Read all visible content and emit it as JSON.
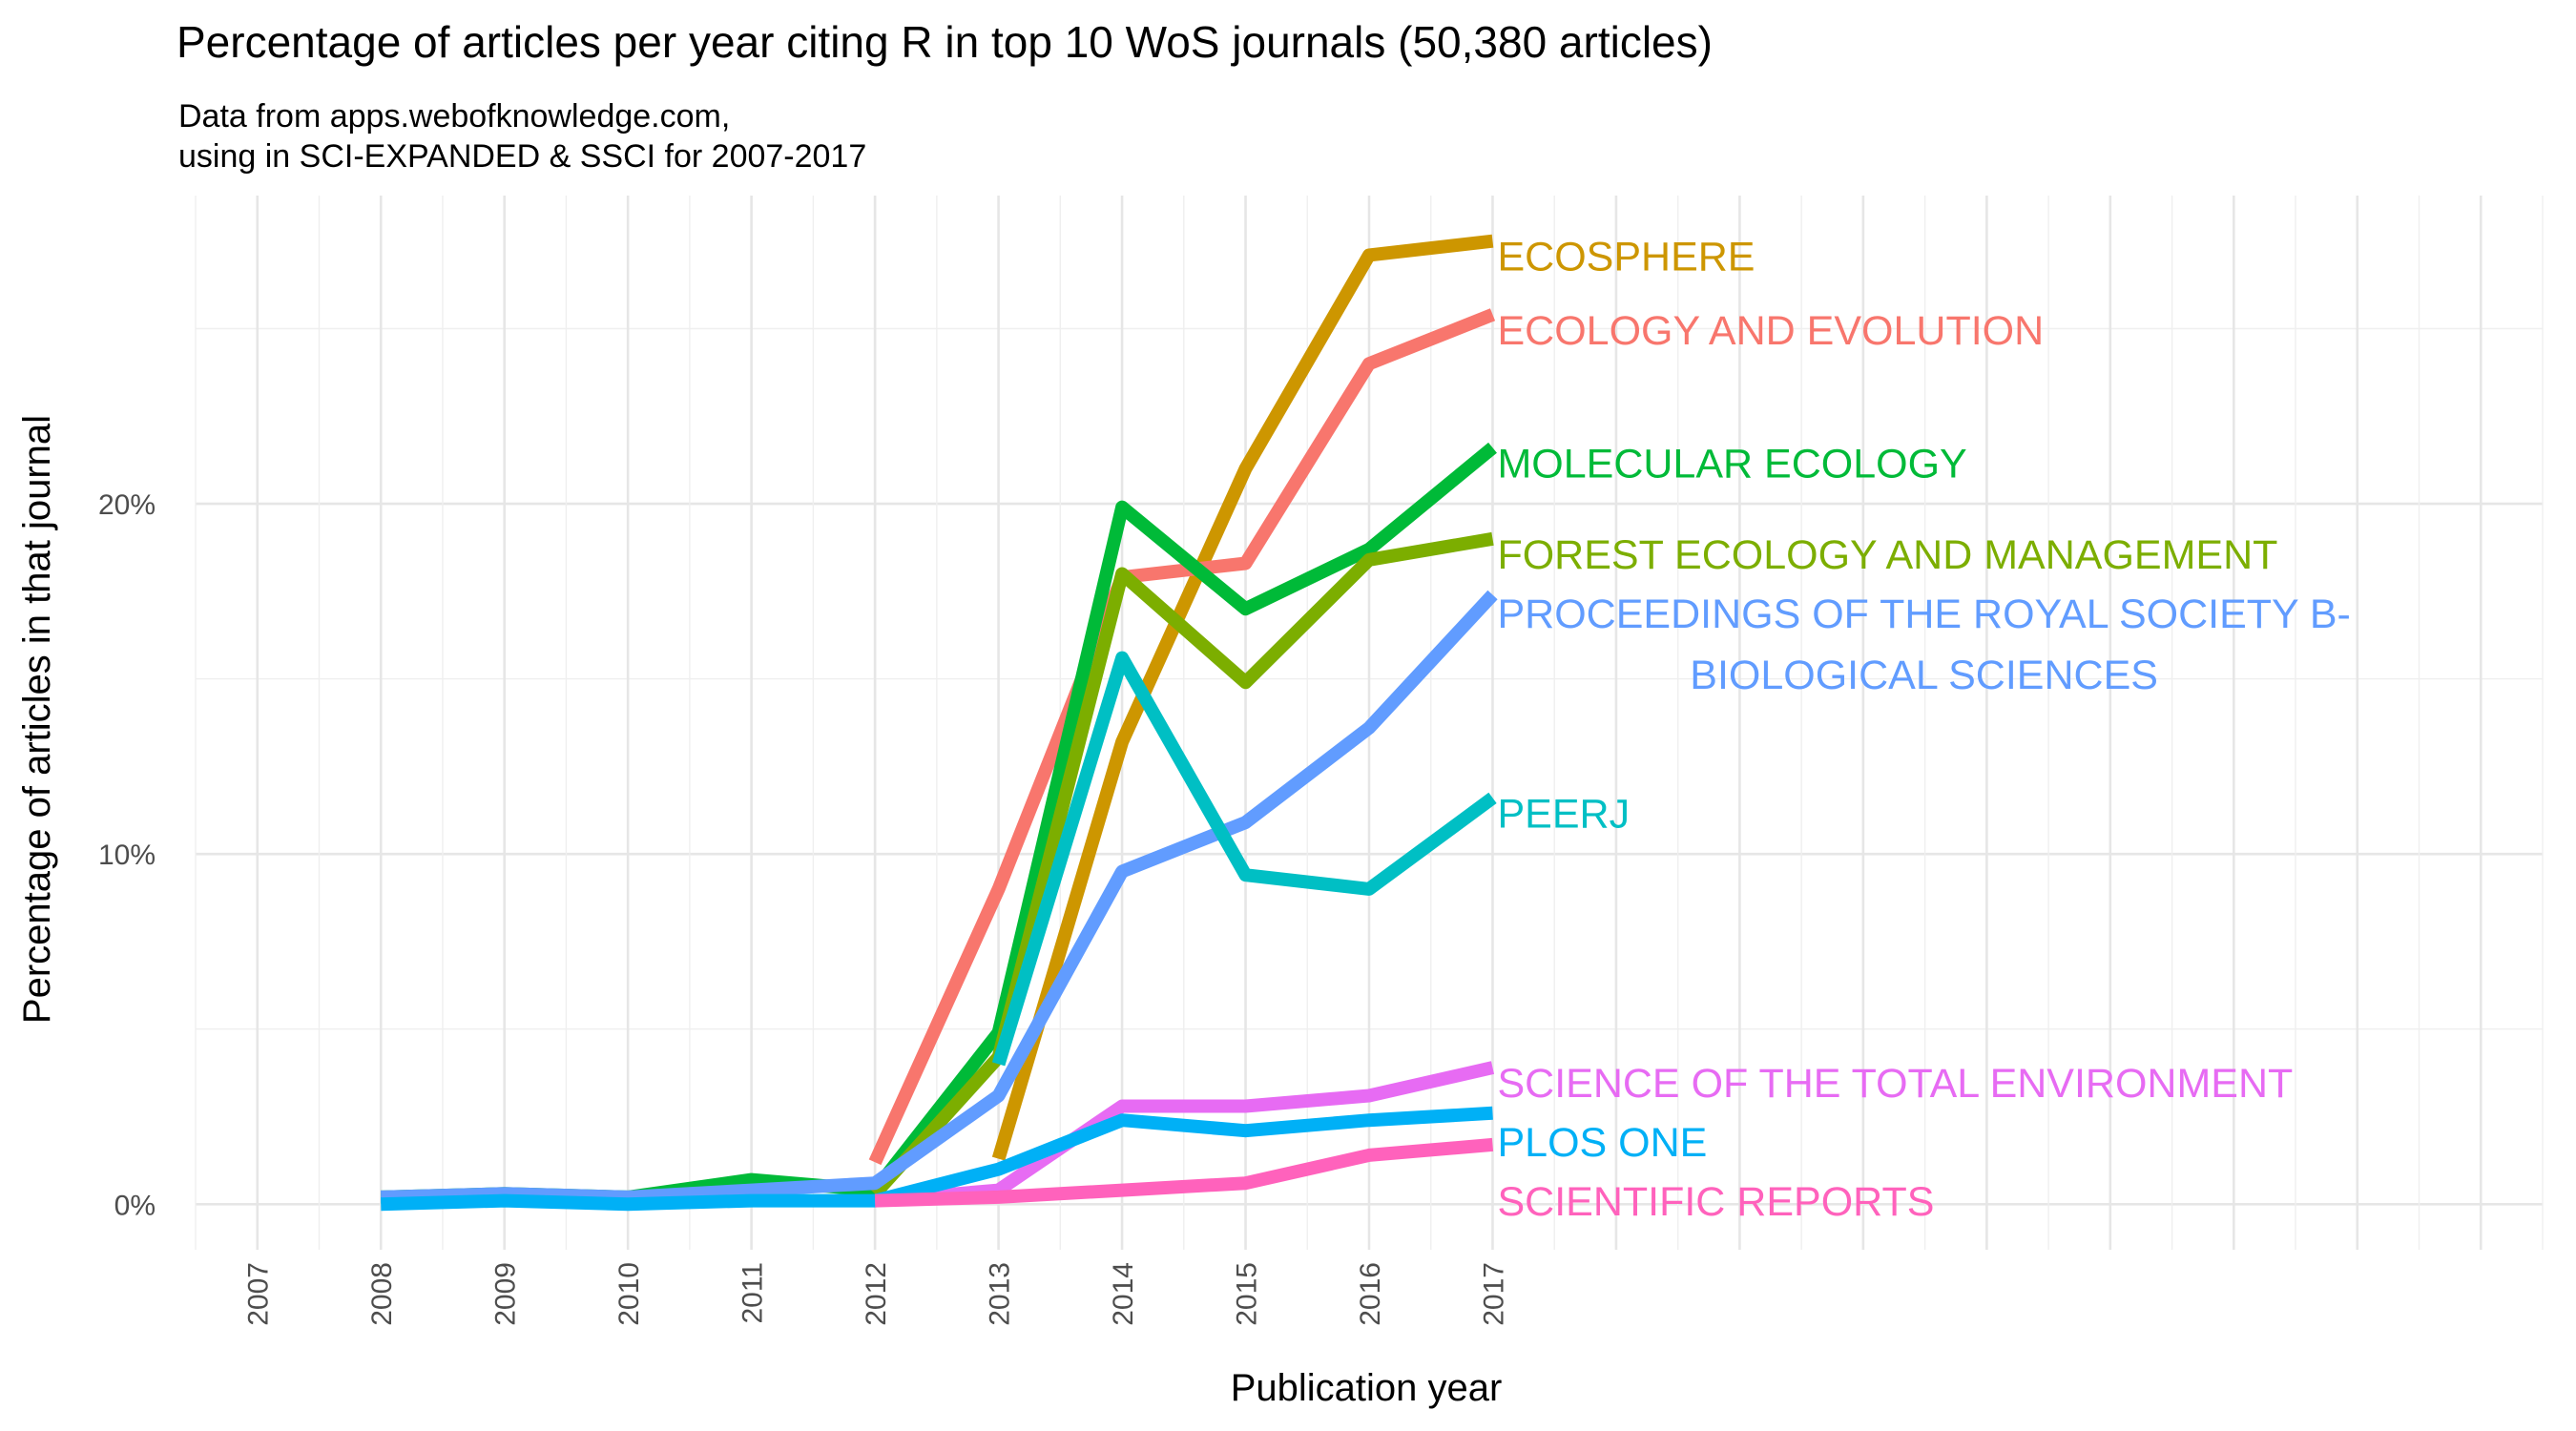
{
  "chart_data": {
    "type": "line",
    "title": "Percentage of articles per year citing R in top 10 WoS journals (50,380 articles)",
    "subtitle": [
      "Data from apps.webofknowledge.com,",
      "using in SCI-EXPANDED & SSCI for 2007-2017"
    ],
    "xlabel": "Publication year",
    "ylabel": "Percentage of articles in that journal",
    "x_ticks": [
      "2007",
      "2008",
      "2009",
      "2010",
      "2011",
      "2012",
      "2013",
      "2014",
      "2015",
      "2016",
      "2017"
    ],
    "y_ticks": [
      0,
      10,
      20
    ],
    "y_tick_labels": [
      "0%",
      "10%",
      "20%"
    ],
    "xlim": [
      2006.5,
      2025.5
    ],
    "ylim": [
      -1.3,
      28.8
    ],
    "grid": true,
    "legend": "direct labels at line ends",
    "series": [
      {
        "name": "ECOSPHERE",
        "label_lines": [
          "ECOSPHERE"
        ],
        "color": "#CD9600",
        "x": [
          2013,
          2014,
          2015,
          2016,
          2017
        ],
        "y": [
          1.3,
          13.2,
          21.0,
          27.1,
          27.5
        ]
      },
      {
        "name": "ECOLOGY AND EVOLUTION",
        "label_lines": [
          "ECOLOGY AND EVOLUTION"
        ],
        "color": "#F8766D",
        "x": [
          2012,
          2013,
          2014,
          2015,
          2016,
          2017
        ],
        "y": [
          1.2,
          9.0,
          17.9,
          18.3,
          24.0,
          25.4
        ]
      },
      {
        "name": "MOLECULAR ECOLOGY",
        "label_lines": [
          "MOLECULAR ECOLOGY"
        ],
        "color": "#00BA38",
        "x": [
          2008,
          2009,
          2010,
          2011,
          2012,
          2013,
          2014,
          2015,
          2016,
          2017
        ],
        "y": [
          0.2,
          0.3,
          0.2,
          0.7,
          0.4,
          4.9,
          19.9,
          17.0,
          18.7,
          21.6
        ]
      },
      {
        "name": "FOREST ECOLOGY AND MANAGEMENT",
        "label_lines": [
          "FOREST ECOLOGY AND MANAGEMENT"
        ],
        "color": "#7CAE00",
        "x": [
          2012,
          2013,
          2014,
          2015,
          2016,
          2017
        ],
        "y": [
          0.3,
          4.2,
          18.0,
          14.9,
          18.4,
          19.0
        ]
      },
      {
        "name": "PROCEEDINGS OF THE ROYAL SOCIETY B-BIOLOGICAL SCIENCES",
        "label_lines": [
          "PROCEEDINGS OF THE ROYAL SOCIETY B-",
          "BIOLOGICAL SCIENCES"
        ],
        "color": "#619CFF",
        "x": [
          2008,
          2009,
          2010,
          2011,
          2012,
          2013,
          2014,
          2015,
          2016,
          2017
        ],
        "y": [
          0.2,
          0.3,
          0.2,
          0.4,
          0.6,
          3.1,
          9.5,
          10.9,
          13.6,
          17.4
        ]
      },
      {
        "name": "PEERJ",
        "label_lines": [
          "PEERJ"
        ],
        "color": "#00BFC4",
        "x": [
          2013,
          2014,
          2015,
          2016,
          2017
        ],
        "y": [
          4.0,
          15.6,
          9.4,
          9.0,
          11.6
        ]
      },
      {
        "name": "SCIENCE OF THE TOTAL ENVIRONMENT",
        "label_lines": [
          "SCIENCE OF THE TOTAL ENVIRONMENT"
        ],
        "color": "#E76BF3",
        "x": [
          2012,
          2013,
          2014,
          2015,
          2016,
          2017
        ],
        "y": [
          0.1,
          0.4,
          2.8,
          2.8,
          3.1,
          3.9
        ]
      },
      {
        "name": "PLOS ONE",
        "label_lines": [
          "PLOS ONE"
        ],
        "color": "#00B0F6",
        "x": [
          2008,
          2009,
          2010,
          2011,
          2012,
          2013,
          2014,
          2015,
          2016,
          2017
        ],
        "y": [
          0.0,
          0.1,
          0.0,
          0.1,
          0.1,
          1.0,
          2.4,
          2.1,
          2.4,
          2.6
        ]
      },
      {
        "name": "SCIENTIFIC REPORTS",
        "label_lines": [
          "SCIENTIFIC REPORTS"
        ],
        "color": "#FF62BC",
        "x": [
          2012,
          2013,
          2014,
          2015,
          2016,
          2017
        ],
        "y": [
          0.1,
          0.2,
          0.4,
          0.6,
          1.4,
          1.7
        ]
      }
    ]
  }
}
